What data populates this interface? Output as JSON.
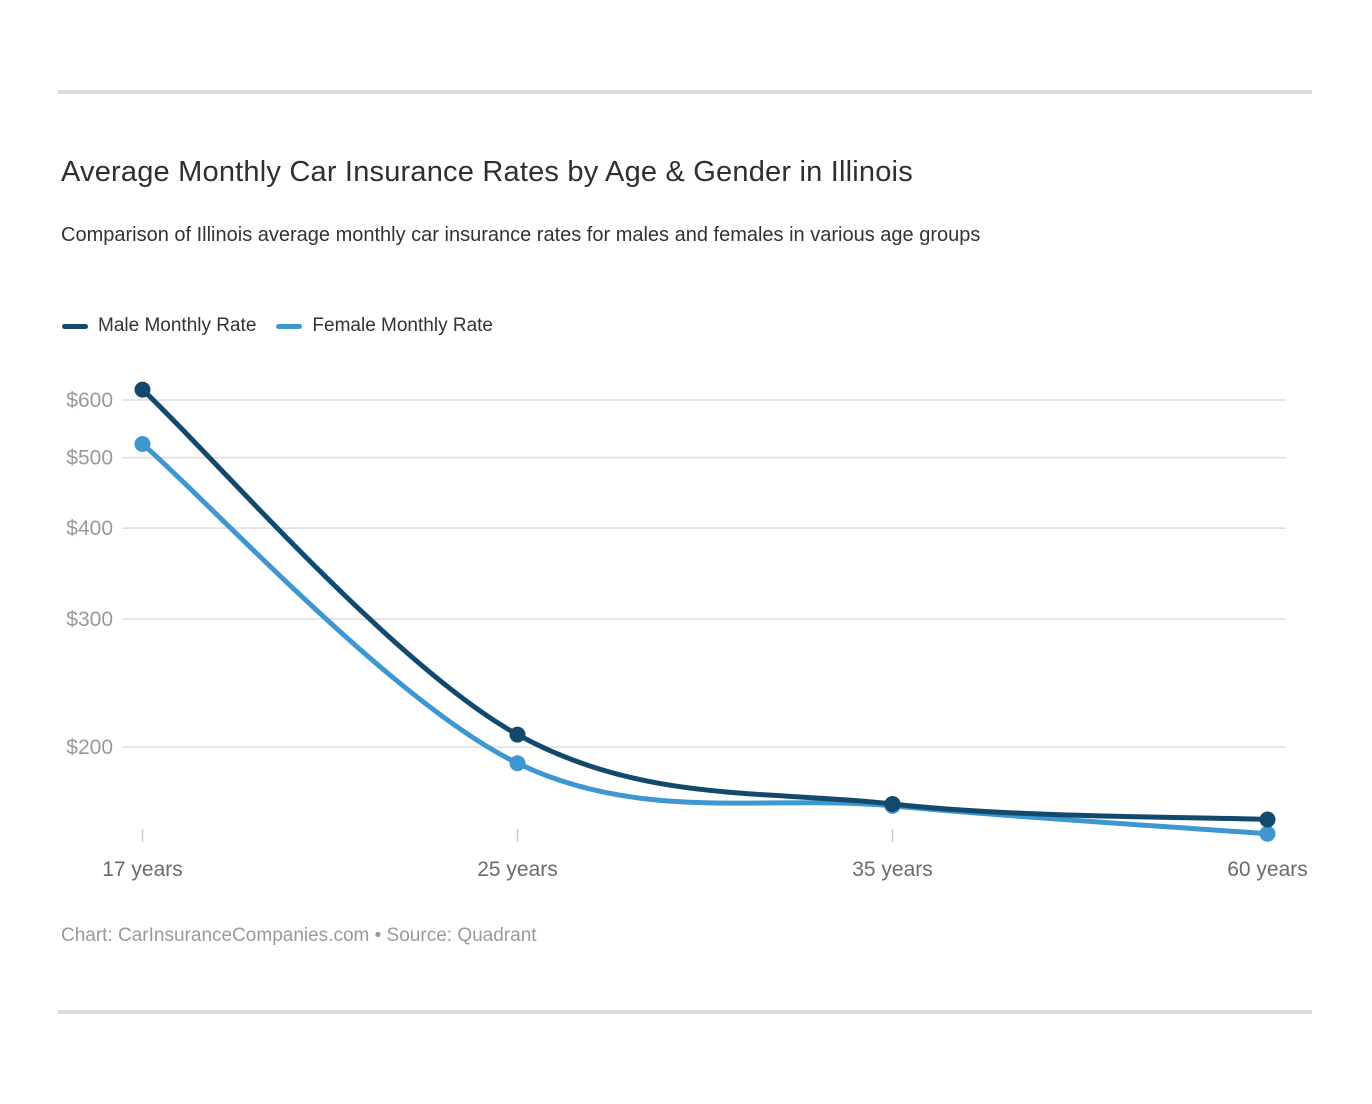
{
  "header": {
    "title": "Average Monthly Car Insurance Rates by Age & Gender in Illinois",
    "subtitle": "Comparison of Illinois average monthly car insurance rates for males and females in various age groups"
  },
  "legend": [
    {
      "label": "Male Monthly Rate",
      "color": "#13496d"
    },
    {
      "label": "Female Monthly Rate",
      "color": "#3e97d0"
    }
  ],
  "footer": {
    "text": "Chart: CarInsuranceCompanies.com • Source: Quadrant"
  },
  "colors": {
    "male_line": "#13496d",
    "female_line": "#3e97d0",
    "gridline": "#dddddd",
    "tick_mark": "#cccccc",
    "y_label": "#999999",
    "x_label": "#6b6b6b",
    "divider": "#dcdcdc"
  },
  "chart_data": {
    "type": "line",
    "title": "Average Monthly Car Insurance Rates by Age & Gender in Illinois",
    "subtitle": "Comparison of Illinois average monthly car insurance rates for males and females in various age groups",
    "categories": [
      "17 years",
      "25 years",
      "35 years",
      "60 years"
    ],
    "series": [
      {
        "name": "Male Monthly Rate",
        "color": "#13496d",
        "values": [
          620,
          208,
          167,
          159
        ]
      },
      {
        "name": "Female Monthly Rate",
        "color": "#3e97d0",
        "values": [
          522,
          190,
          166,
          152
        ]
      }
    ],
    "xlabel": "",
    "ylabel": "",
    "y_axis": {
      "scale": "log",
      "unit": "$",
      "ticks": [
        600,
        500,
        400,
        300,
        200
      ],
      "tick_labels": [
        "$600",
        "$500",
        "$400",
        "$300",
        "$200"
      ]
    },
    "grid": "horizontal",
    "legend_position": "top",
    "source": "Chart: CarInsuranceCompanies.com • Source: Quadrant"
  }
}
